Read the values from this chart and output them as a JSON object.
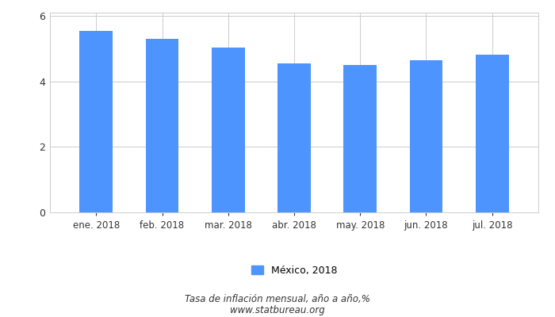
{
  "categories": [
    "ene. 2018",
    "feb. 2018",
    "mar. 2018",
    "abr. 2018",
    "may. 2018",
    "jun. 2018",
    "jul. 2018"
  ],
  "values": [
    5.55,
    5.3,
    5.04,
    4.55,
    4.51,
    4.65,
    4.81
  ],
  "bar_color": "#4d94ff",
  "ylim": [
    0,
    6.1
  ],
  "yticks": [
    0,
    2,
    4,
    6
  ],
  "legend_label": "México, 2018",
  "footer_line1": "Tasa de inflación mensual, año a año,%",
  "footer_line2": "www.statbureau.org",
  "background_color": "#ffffff",
  "grid_color": "#cccccc",
  "bar_width": 0.5
}
